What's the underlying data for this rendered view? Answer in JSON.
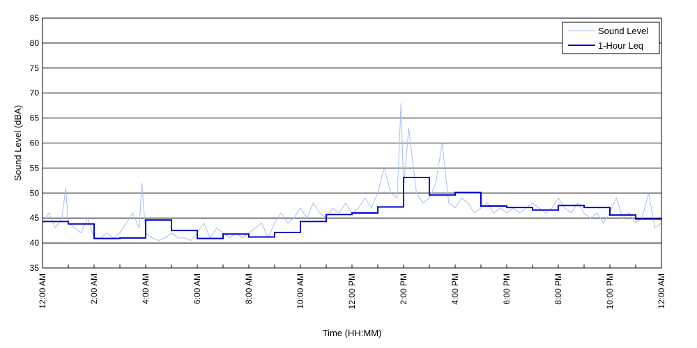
{
  "chart_data": {
    "type": "line",
    "title": "",
    "xlabel": "Time (HH:MM)",
    "ylabel": "Sound Level (dBA)",
    "ylim": [
      35,
      85
    ],
    "yticks": [
      35,
      40,
      45,
      50,
      55,
      60,
      65,
      70,
      75,
      80,
      85
    ],
    "xlim": [
      0,
      24
    ],
    "x_unit": "hours since 12:00 AM",
    "x_tick_labels": [
      "12:00 AM",
      "2:00 AM",
      "4:00 AM",
      "6:00 AM",
      "8:00 AM",
      "10:00 AM",
      "12:00 PM",
      "2:00 PM",
      "4:00 PM",
      "6:00 PM",
      "8:00 PM",
      "10:00 PM",
      "12:00 AM"
    ],
    "grid": "horizontal",
    "legend_position": "top-right",
    "series": [
      {
        "name": "Sound Level",
        "color": "#a7bdf5",
        "style": "thin-line",
        "x": [
          0.0,
          0.25,
          0.5,
          0.75,
          0.9,
          1.0,
          1.25,
          1.5,
          1.75,
          2.0,
          2.25,
          2.5,
          2.75,
          3.0,
          3.25,
          3.5,
          3.75,
          3.85,
          4.0,
          4.25,
          4.5,
          4.75,
          5.0,
          5.25,
          5.5,
          5.75,
          6.0,
          6.25,
          6.5,
          6.75,
          7.0,
          7.25,
          7.5,
          7.75,
          8.0,
          8.25,
          8.5,
          8.75,
          9.0,
          9.25,
          9.5,
          9.75,
          10.0,
          10.25,
          10.5,
          10.75,
          11.0,
          11.25,
          11.5,
          11.75,
          12.0,
          12.25,
          12.5,
          12.75,
          13.0,
          13.25,
          13.5,
          13.75,
          13.9,
          14.0,
          14.2,
          14.5,
          14.75,
          15.0,
          15.25,
          15.5,
          15.75,
          16.0,
          16.25,
          16.5,
          16.75,
          17.0,
          17.25,
          17.5,
          17.75,
          18.0,
          18.25,
          18.5,
          18.75,
          19.0,
          19.25,
          19.5,
          19.75,
          20.0,
          20.25,
          20.5,
          20.75,
          21.0,
          21.25,
          21.5,
          21.75,
          22.0,
          22.25,
          22.5,
          22.75,
          23.0,
          23.25,
          23.5,
          23.75,
          24.0
        ],
        "values": [
          44,
          46,
          43,
          45,
          51,
          44,
          43,
          42,
          45,
          41,
          41,
          42,
          41,
          42,
          44,
          46,
          43,
          52,
          42,
          41,
          40.5,
          41,
          42,
          41,
          41,
          40.5,
          42,
          44,
          41,
          43,
          42,
          41,
          42,
          41,
          42,
          43,
          44,
          41,
          44,
          46,
          44,
          45,
          47,
          45,
          48,
          46,
          45,
          47,
          46,
          48,
          46,
          47,
          49,
          47,
          50,
          55,
          50,
          49,
          68,
          51,
          63,
          50,
          48,
          49,
          52,
          60,
          48,
          47,
          49,
          48,
          46,
          47,
          48,
          46,
          47,
          46,
          47,
          46,
          47,
          48,
          47,
          46,
          47,
          49,
          47,
          46,
          48,
          46,
          45,
          46,
          44,
          46,
          49,
          45,
          46,
          44,
          45,
          50,
          43,
          44
        ]
      },
      {
        "name": "1-Hour Leq",
        "color": "#0000cc",
        "style": "step",
        "hour_values": [
          44.3,
          43.8,
          40.9,
          41.0,
          44.6,
          42.5,
          40.9,
          41.8,
          41.2,
          42.1,
          44.3,
          45.7,
          46.0,
          47.2,
          53.1,
          49.6,
          50.1,
          47.4,
          47.1,
          46.6,
          47.5,
          47.1,
          45.6,
          44.8,
          44.9
        ]
      }
    ]
  }
}
